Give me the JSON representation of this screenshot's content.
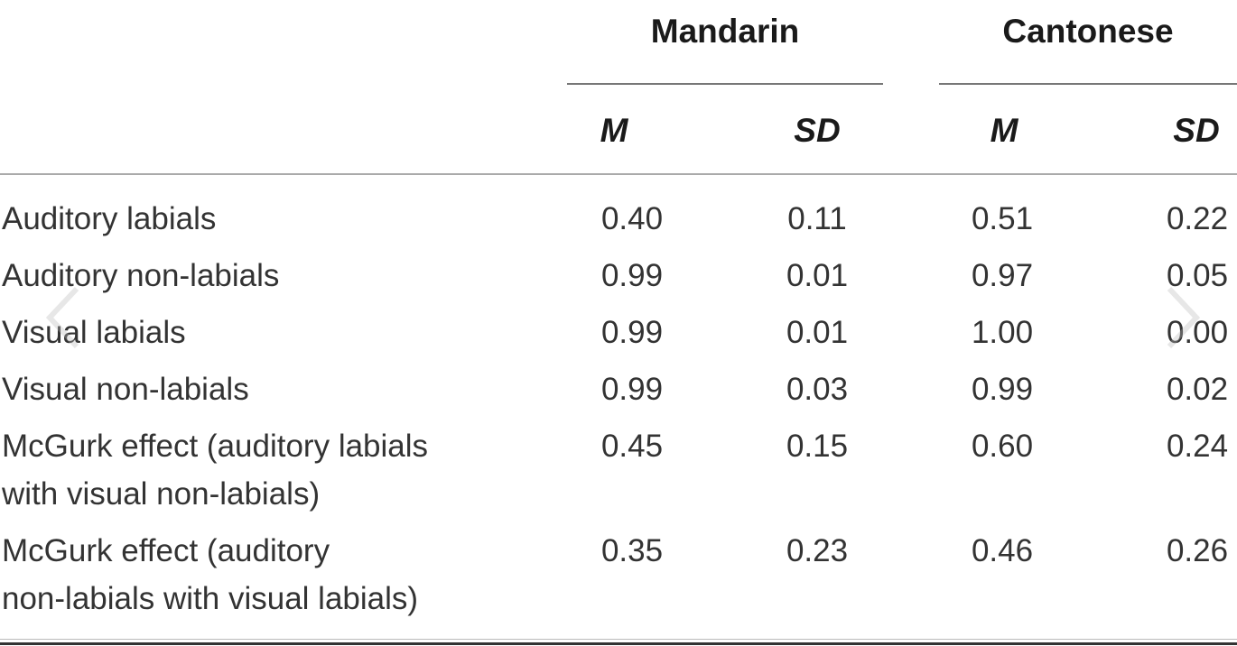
{
  "groups": {
    "mandarin": "Mandarin",
    "cantonese": "Cantonese"
  },
  "columns": {
    "mandarin_m": "M",
    "mandarin_sd": "SD",
    "cantonese_m": "M",
    "cantonese_sd": "SD"
  },
  "rows": [
    {
      "label_line1": "Auditory labials",
      "label_line2": "",
      "m_m": "0.40",
      "m_sd": "0.11",
      "c_m": "0.51",
      "c_sd": "0.22"
    },
    {
      "label_line1": "Auditory non-labials",
      "label_line2": "",
      "m_m": "0.99",
      "m_sd": "0.01",
      "c_m": "0.97",
      "c_sd": "0.05"
    },
    {
      "label_line1": "Visual labials",
      "label_line2": "",
      "m_m": "0.99",
      "m_sd": "0.01",
      "c_m": "1.00",
      "c_sd": "0.00"
    },
    {
      "label_line1": "Visual non-labials",
      "label_line2": "",
      "m_m": "0.99",
      "m_sd": "0.03",
      "c_m": "0.99",
      "c_sd": "0.02"
    },
    {
      "label_line1": "McGurk effect (auditory labials",
      "label_line2": "with visual non-labials)",
      "m_m": "0.45",
      "m_sd": "0.15",
      "c_m": "0.60",
      "c_sd": "0.24"
    },
    {
      "label_line1": "McGurk effect (auditory",
      "label_line2": "non-labials with visual labials)",
      "m_m": "0.35",
      "m_sd": "0.23",
      "c_m": "0.46",
      "c_sd": "0.26"
    }
  ],
  "icons": {
    "prev": "chevron-left-icon",
    "next": "chevron-right-icon"
  }
}
